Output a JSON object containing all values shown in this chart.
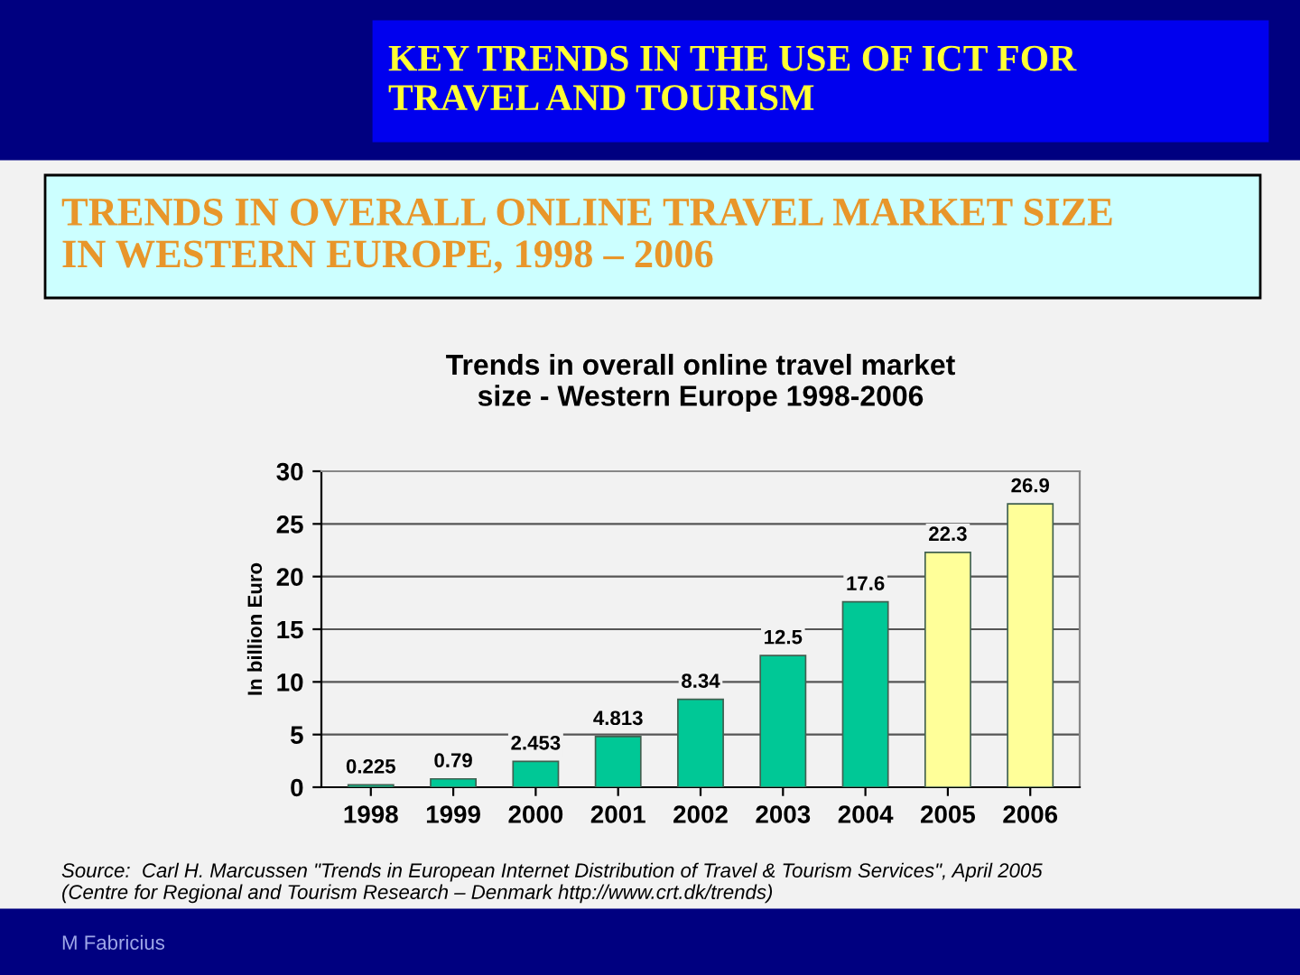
{
  "chart_data": {
    "type": "bar",
    "title": "Trends in overall online travel market\nsize - Western Europe 1998-2006",
    "ylabel": "In billion Euro",
    "categories": [
      "1998",
      "1999",
      "2000",
      "2001",
      "2002",
      "2003",
      "2004",
      "2005",
      "2006"
    ],
    "values": [
      0.225,
      0.79,
      2.453,
      4.813,
      8.34,
      12.5,
      17.6,
      22.3,
      26.9
    ],
    "colors": [
      "#00c896",
      "#00c896",
      "#00c896",
      "#00c896",
      "#00c896",
      "#00c896",
      "#00c896",
      "#ffff99",
      "#ffff99"
    ],
    "ylim": [
      0,
      30
    ],
    "yticks": [
      0,
      5,
      10,
      15,
      20,
      25,
      30
    ],
    "grid": "y",
    "data_labels": true,
    "annotations": [
      "KEY TRENDS IN THE USE OF ICT FOR\nTRAVEL AND TOURISM",
      "TRENDS IN OVERALL ONLINE TRAVEL MARKET SIZE\nIN WESTERN EUROPE, 1998 – 2006",
      "Source:  Carl H. Marcussen \"Trends in European Internet Distribution of Travel & Tourism Services\", April 2005\n(Centre for Regional and Tourism Research – Denmark http://www.crt.dk/trends)",
      "M Fabricius"
    ]
  }
}
